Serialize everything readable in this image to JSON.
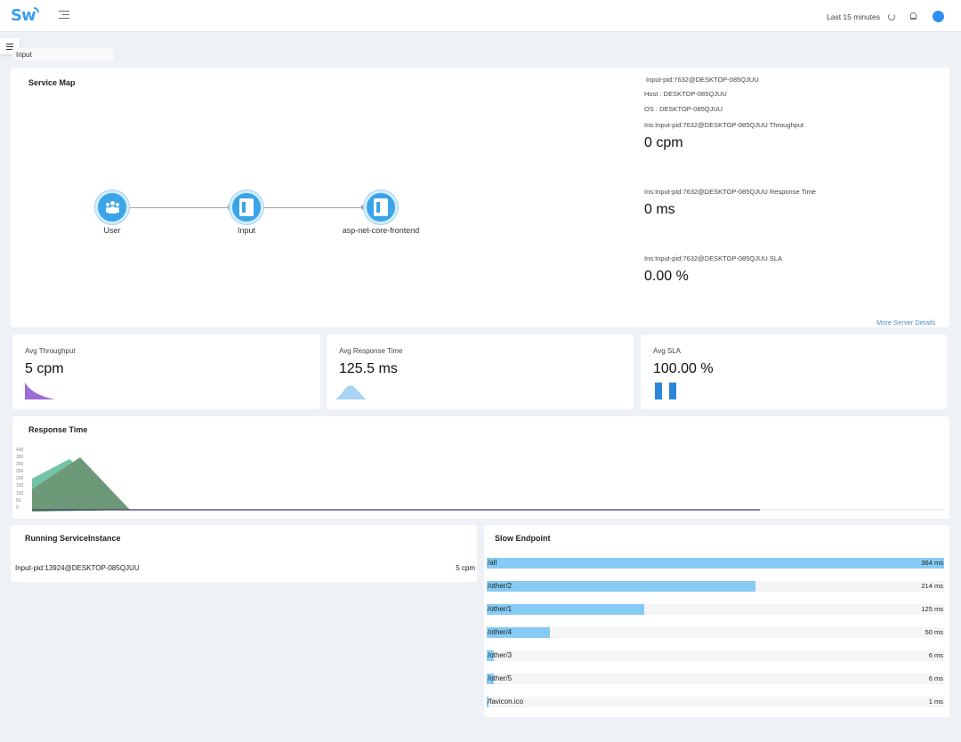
{
  "header": {
    "logo": "Sw",
    "time_range": "Last 15 minutes"
  },
  "breadcrumb": "Input",
  "service_map": {
    "title": "Service Map",
    "nodes": [
      {
        "label": "User"
      },
      {
        "label": "Input"
      },
      {
        "label": "asp-net-core-frontend"
      }
    ],
    "colors": {
      "node": "#3aa4e8",
      "edge": "#9aa4ad"
    }
  },
  "instance_info": {
    "name": "Input-pid:7632@DESKTOP-085QJUU",
    "host": "Host : DESKTOP-085QJUU",
    "os": "OS : DESKTOP-085QJUU",
    "throughput_label": "Ins:Input-pid:7632@DESKTOP-085QJUU Throughput",
    "throughput_value": "0 cpm",
    "response_label": "Ins:Input-pid:7632@DESKTOP-085QJUU Response Time",
    "response_value": "0 ms",
    "sla_label": "Ins:Input-pid:7632@DESKTOP-085QJUU SLA",
    "sla_value": "0.00 %",
    "more_link": "More Server Details"
  },
  "stats": [
    {
      "label": "Avg Throughput",
      "value": "5 cpm",
      "color": "#9c6bd6"
    },
    {
      "label": "Avg Response Time",
      "value": "125.5 ms",
      "color": "#a7d4f5"
    },
    {
      "label": "Avg SLA",
      "value": "100.00 %",
      "color": "#2d86d9"
    }
  ],
  "response_time": {
    "title": "Response Time",
    "y_ticks": [
      "400",
      "350",
      "300",
      "250",
      "200",
      "150",
      "100",
      "50",
      "0"
    ],
    "colors": {
      "p99": "#74c3a6",
      "p95": "#6e9978"
    }
  },
  "running_instances": {
    "title": "Running ServiceInstance",
    "items": [
      {
        "name": "Input-pid:13924@DESKTOP-085QJUU",
        "value": "5 cpm"
      }
    ]
  },
  "slow_endpoints": {
    "title": "Slow Endpoint",
    "items": [
      {
        "name": "/all",
        "time": "364 ms",
        "ms": 364
      },
      {
        "name": "/other/2",
        "time": "214 ms",
        "ms": 214
      },
      {
        "name": "/other/1",
        "time": "125 ms",
        "ms": 125
      },
      {
        "name": "/other/4",
        "time": "50 ms",
        "ms": 50
      },
      {
        "name": "/other/3",
        "time": "6 ms",
        "ms": 6
      },
      {
        "name": "/other/5",
        "time": "6 ms",
        "ms": 6
      },
      {
        "name": "/favicon.ico",
        "time": "1 ms",
        "ms": 1
      }
    ],
    "bar_color": "#86cbf5"
  }
}
